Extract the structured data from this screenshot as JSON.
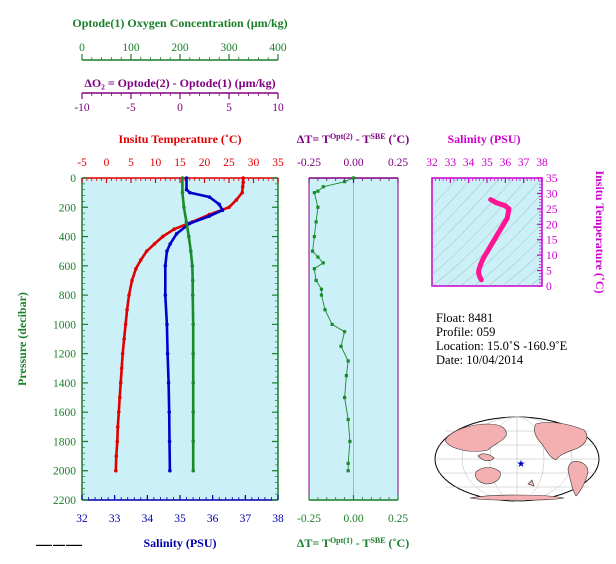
{
  "header": {
    "oxygen_title": "Optode(1) Oxygen Concentration (µm/kg)",
    "oxygen_ticks": [
      "0",
      "100",
      "200",
      "300",
      "400"
    ],
    "delta_o2_title": "ΔO₂ = Optode(2) - Optode(1)   (µm/kg)",
    "delta_o2_ticks": [
      "-10",
      "-5",
      "0",
      "5",
      "10"
    ],
    "temperature_title": "Insitu Temperature (˚C)",
    "temperature_ticks": [
      "-5",
      "0",
      "5",
      "10",
      "15",
      "20",
      "25",
      "30",
      "35"
    ],
    "delta_t_top_title": "ΔT= T^Opt(2) - T^SBE (˚C)",
    "delta_t_ticks": [
      "-0.25",
      "0.00",
      "0.25"
    ],
    "salinity_inset_title": "Salinity (PSU)",
    "salinity_inset_ticks": [
      "32",
      "33",
      "34",
      "35",
      "36",
      "37",
      "38"
    ]
  },
  "axes": {
    "pressure_label": "Pressure (decibar)",
    "pressure_ticks": [
      "0",
      "200",
      "400",
      "600",
      "800",
      "1000",
      "1200",
      "1400",
      "1600",
      "1800",
      "2000",
      "2200"
    ],
    "salinity_label": "Salinity (PSU)",
    "salinity_ticks": [
      "32",
      "33",
      "34",
      "35",
      "36",
      "37",
      "38"
    ],
    "delta_t_bottom_title": "ΔT= T^Opt(1) - T^SBE (˚C)",
    "inset_temp_label": "Insitu Temperature (˚C)",
    "inset_temp_ticks": [
      "0",
      "5",
      "10",
      "15",
      "20",
      "25",
      "30",
      "35"
    ]
  },
  "info": {
    "float_line": "Float:  8481",
    "profile_line": "Profile:  059",
    "location_line": "Location:  15.0˚S  -160.9˚E",
    "date_line": "Date:  10/04/2014"
  },
  "colors": {
    "panel_bg": "#ccf0f8",
    "temperature": "#e00000",
    "salinity": "#0000cc",
    "oxygen": "#1a8a2a",
    "delta_t": "#1a8a2a",
    "ts_curve": "#ff1493",
    "pressure_axis": "#1a7f2a",
    "land": "#f4b0b0"
  },
  "chart_data": [
    {
      "type": "line",
      "title": "Insitu Temperature (˚C)",
      "ylabel": "Pressure (decibar)",
      "ylim": [
        2200,
        0
      ],
      "x_axes": {
        "temperature": [
          -5,
          35
        ],
        "salinity": [
          32,
          38
        ],
        "oxygen": [
          0,
          400
        ],
        "delta_o2": [
          -10,
          10
        ]
      },
      "series": [
        {
          "name": "Insitu Temperature (˚C)",
          "axis": "temperature",
          "points": [
            [
              27.9,
              0
            ],
            [
              27.9,
              30
            ],
            [
              27.8,
              60
            ],
            [
              27.7,
              100
            ],
            [
              26.5,
              150
            ],
            [
              25.0,
              200
            ],
            [
              21.0,
              250
            ],
            [
              17.5,
              300
            ],
            [
              13.8,
              350
            ],
            [
              11.5,
              400
            ],
            [
              9.8,
              450
            ],
            [
              8.2,
              500
            ],
            [
              7.0,
              560
            ],
            [
              6.0,
              620
            ],
            [
              5.2,
              700
            ],
            [
              4.6,
              800
            ],
            [
              4.2,
              900
            ],
            [
              3.9,
              1000
            ],
            [
              3.6,
              1100
            ],
            [
              3.3,
              1200
            ],
            [
              3.1,
              1300
            ],
            [
              2.9,
              1400
            ],
            [
              2.7,
              1500
            ],
            [
              2.5,
              1600
            ],
            [
              2.3,
              1700
            ],
            [
              2.2,
              1800
            ],
            [
              2.0,
              1900
            ],
            [
              1.9,
              2000
            ]
          ]
        },
        {
          "name": "Salinity (PSU)",
          "axis": "salinity",
          "points": [
            [
              35.2,
              0
            ],
            [
              35.2,
              80
            ],
            [
              35.3,
              100
            ],
            [
              35.9,
              130
            ],
            [
              36.2,
              180
            ],
            [
              36.3,
              220
            ],
            [
              35.9,
              260
            ],
            [
              35.3,
              310
            ],
            [
              34.9,
              380
            ],
            [
              34.7,
              450
            ],
            [
              34.6,
              500
            ],
            [
              34.55,
              600
            ],
            [
              34.55,
              800
            ],
            [
              34.6,
              1000
            ],
            [
              34.62,
              1200
            ],
            [
              34.65,
              1400
            ],
            [
              34.67,
              1600
            ],
            [
              34.68,
              1800
            ],
            [
              34.69,
              2000
            ]
          ]
        },
        {
          "name": "Optode(1) Oxygen Concentration (µm/kg)",
          "axis": "oxygen",
          "points": [
            [
              205,
              0
            ],
            [
              205,
              100
            ],
            [
              208,
              200
            ],
            [
              213,
              300
            ],
            [
              218,
              400
            ],
            [
              222,
              500
            ],
            [
              225,
              600
            ],
            [
              226,
              700
            ],
            [
              226,
              800
            ],
            [
              227,
              1000
            ],
            [
              227,
              1200
            ],
            [
              227,
              1400
            ],
            [
              227,
              1600
            ],
            [
              227,
              1800
            ],
            [
              227,
              2000
            ]
          ]
        }
      ]
    },
    {
      "type": "scatter",
      "xlabel": "ΔT= T^Opt(1) - T^SBE (˚C)",
      "xlim": [
        -0.25,
        0.25
      ],
      "ylim": [
        2200,
        0
      ],
      "series": [
        {
          "name": "ΔT= T^Opt(2) - T^SBE (˚C)",
          "points": [
            [
              0.0,
              0
            ],
            [
              -0.05,
              25
            ],
            [
              -0.17,
              60
            ],
            [
              -0.2,
              90
            ],
            [
              -0.22,
              100
            ],
            [
              -0.2,
              200
            ],
            [
              -0.21,
              300
            ],
            [
              -0.22,
              400
            ],
            [
              -0.23,
              500
            ],
            [
              -0.2,
              540
            ],
            [
              -0.17,
              580
            ],
            [
              -0.22,
              620
            ],
            [
              -0.21,
              700
            ],
            [
              -0.18,
              760
            ],
            [
              -0.18,
              800
            ],
            [
              -0.16,
              900
            ],
            [
              -0.12,
              1000
            ],
            [
              -0.05,
              1050
            ],
            [
              -0.07,
              1150
            ],
            [
              -0.03,
              1250
            ],
            [
              -0.04,
              1350
            ],
            [
              -0.05,
              1500
            ],
            [
              -0.03,
              1650
            ],
            [
              -0.02,
              1800
            ],
            [
              -0.03,
              1950
            ],
            [
              -0.03,
              2000
            ]
          ]
        }
      ]
    },
    {
      "type": "line",
      "xlabel": "Salinity (PSU)",
      "ylabel": "Insitu Temperature (˚C)",
      "xlim": [
        32,
        38
      ],
      "ylim": [
        0,
        35
      ],
      "series": [
        {
          "name": "T-S",
          "points": [
            [
              35.2,
              28
            ],
            [
              35.5,
              27
            ],
            [
              36.0,
              26
            ],
            [
              36.2,
              25
            ],
            [
              36.1,
              22
            ],
            [
              35.7,
              18
            ],
            [
              35.3,
              14
            ],
            [
              35.0,
              11
            ],
            [
              34.8,
              9
            ],
            [
              34.65,
              7
            ],
            [
              34.55,
              5
            ],
            [
              34.55,
              4
            ],
            [
              34.6,
              3
            ],
            [
              34.65,
              2.5
            ],
            [
              34.69,
              2
            ]
          ]
        }
      ]
    }
  ]
}
